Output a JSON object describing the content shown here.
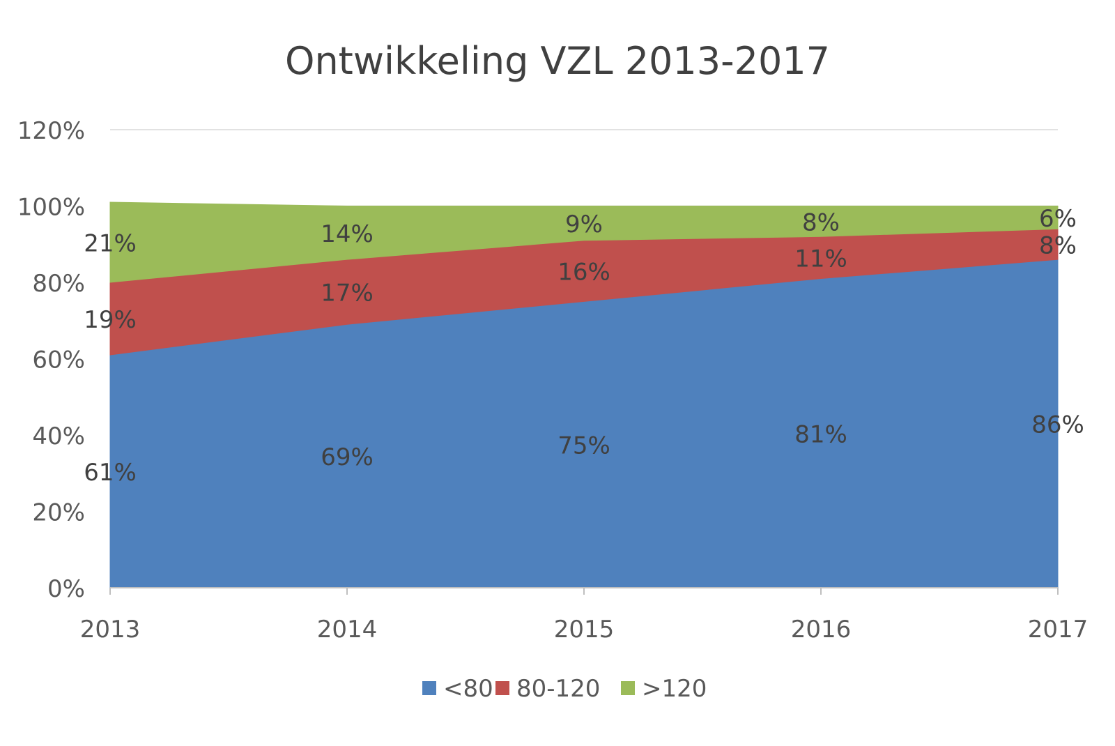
{
  "chart_data": {
    "type": "area",
    "stacked": true,
    "title": "Ontwikkeling VZL 2013-2017",
    "xlabel": "",
    "ylabel": "",
    "categories": [
      "2013",
      "2014",
      "2015",
      "2016",
      "2017"
    ],
    "y_ticks": [
      "0%",
      "20%",
      "40%",
      "60%",
      "80%",
      "100%",
      "120%"
    ],
    "ylim": [
      0,
      1.2
    ],
    "grid": true,
    "legend_position": "bottom",
    "series": [
      {
        "name": "<80",
        "color": "#4F81BD",
        "values": [
          0.61,
          0.69,
          0.75,
          0.81,
          0.86
        ],
        "labels": [
          "61%",
          "69%",
          "75%",
          "81%",
          "86%"
        ]
      },
      {
        "name": "80-120",
        "color": "#C0504D",
        "values": [
          0.19,
          0.17,
          0.16,
          0.11,
          0.08
        ],
        "labels": [
          "19%",
          "17%",
          "16%",
          "11%",
          "8%"
        ]
      },
      {
        "name": ">120",
        "color": "#9BBB59",
        "values": [
          0.21,
          0.14,
          0.09,
          0.08,
          0.06
        ],
        "labels": [
          "21%",
          "14%",
          "9%",
          "8%",
          "6%"
        ]
      }
    ]
  }
}
